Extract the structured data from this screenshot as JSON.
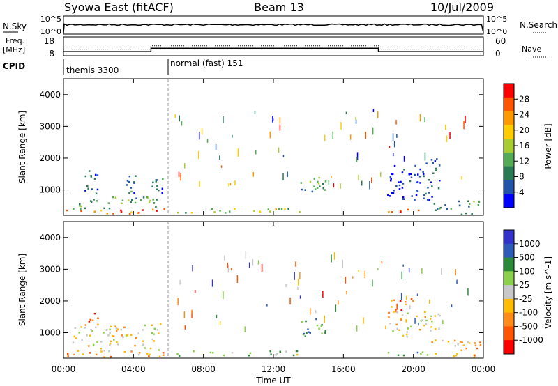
{
  "header": {
    "station": "Syowa East (fitACF)",
    "beam": "Beam 13",
    "date": "10/Jul/2009"
  },
  "summary_panels": {
    "nsky_label": "N.Sky",
    "nsearch_label": "N.Search",
    "nsky_ticks": [
      "10^5",
      "10^0"
    ],
    "nsearch_ticks": [
      "10^5",
      "10^0"
    ],
    "freq_label": "Freq.",
    "freq_unit": "[MHz]",
    "freq_ticks": [
      "18",
      "8"
    ],
    "nave_label": "Nave",
    "nave_ticks": [
      "60",
      "0"
    ],
    "cpid_label": "CPID",
    "cpid_segments": [
      {
        "start_h": 0,
        "end_h": 6,
        "label": "themis 3300"
      },
      {
        "start_h": 6,
        "end_h": 24,
        "label": "normal (fast) 151"
      }
    ],
    "freq_steps": [
      {
        "start_h": 0,
        "end_h": 5,
        "mhz": 10.2
      },
      {
        "start_h": 5,
        "end_h": 18,
        "mhz": 12.0
      },
      {
        "start_h": 18,
        "end_h": 24,
        "mhz": 10.2
      }
    ]
  },
  "colors": {
    "power_scale": [
      "#0000ff",
      "#2255aa",
      "#2a7a55",
      "#55aa55",
      "#aacc33",
      "#ffcc00",
      "#ff9900",
      "#ff5500",
      "#ff0000"
    ],
    "velocity_scale": [
      "#ff0000",
      "#ff5500",
      "#ff8c1a",
      "#ffbb00",
      "#c8c8c8",
      "#8ad04a",
      "#2a8a3a",
      "#2e5ab8",
      "#3333cc"
    ],
    "frame": "#000000"
  },
  "chart_data": [
    {
      "type": "heatmap",
      "ylabel": "Slant Range [km]",
      "xlabel": "Time UT",
      "xlim": [
        0,
        24
      ],
      "ylim": [
        200,
        4500
      ],
      "x_ticks": [
        "00:00",
        "04:00",
        "08:00",
        "12:00",
        "16:00",
        "20:00",
        "00:00"
      ],
      "y_ticks": [
        1000,
        2000,
        3000,
        4000
      ],
      "colorbar_label": "Power [dB]",
      "colorbar_ticks": [
        "4",
        "8",
        "12",
        "16",
        "20",
        "24",
        "28"
      ],
      "regions": [
        {
          "t0": 0.0,
          "t1": 5.8,
          "r0": 250,
          "r1": 420,
          "level": 0.85
        },
        {
          "t0": 0.5,
          "t1": 5.5,
          "r0": 420,
          "r1": 800,
          "level": 0.35
        },
        {
          "t0": 1.2,
          "t1": 2.2,
          "r0": 900,
          "r1": 1700,
          "level": 0.1
        },
        {
          "t0": 3.5,
          "t1": 5.7,
          "r0": 900,
          "r1": 1500,
          "level": 0.15
        },
        {
          "t0": 6.0,
          "t1": 13.5,
          "r0": 300,
          "r1": 450,
          "level": 0.5
        },
        {
          "t0": 13.5,
          "t1": 15.2,
          "r0": 900,
          "r1": 1500,
          "level": 0.3
        },
        {
          "t0": 18.5,
          "t1": 21.5,
          "r0": 700,
          "r1": 2000,
          "level": 0.05
        },
        {
          "t0": 18.0,
          "t1": 21.0,
          "r0": 300,
          "r1": 420,
          "level": 0.75
        },
        {
          "t0": 21.0,
          "t1": 23.8,
          "r0": 250,
          "r1": 700,
          "level": 0.3
        }
      ]
    },
    {
      "type": "heatmap",
      "ylabel": "Slant Range [km]",
      "xlabel": "Time UT",
      "xlim": [
        0,
        24
      ],
      "ylim": [
        200,
        4500
      ],
      "x_ticks": [
        "00:00",
        "04:00",
        "08:00",
        "12:00",
        "16:00",
        "20:00",
        "00:00"
      ],
      "y_ticks": [
        1000,
        2000,
        3000,
        4000
      ],
      "colorbar_label": "Velocity [m s^-1]",
      "colorbar_ticks": [
        "1000",
        "500",
        "100",
        "25",
        "-25",
        "-100",
        "-500",
        "-1000"
      ],
      "regions": [
        {
          "t0": 0.0,
          "t1": 5.8,
          "r0": 250,
          "r1": 420,
          "level": 0.25
        },
        {
          "t0": 0.5,
          "t1": 5.5,
          "r0": 420,
          "r1": 1300,
          "level": 0.45
        },
        {
          "t0": 1.3,
          "t1": 2.0,
          "r0": 1300,
          "r1": 1700,
          "level": 0.15
        },
        {
          "t0": 6.0,
          "t1": 13.5,
          "r0": 300,
          "r1": 450,
          "level": 0.6
        },
        {
          "t0": 13.5,
          "t1": 15.2,
          "r0": 900,
          "r1": 1500,
          "level": 0.8
        },
        {
          "t0": 18.5,
          "t1": 20.0,
          "r0": 1600,
          "r1": 2100,
          "level": 0.2
        },
        {
          "t0": 18.5,
          "t1": 21.5,
          "r0": 900,
          "r1": 1700,
          "level": 0.45
        },
        {
          "t0": 18.0,
          "t1": 21.5,
          "r0": 300,
          "r1": 420,
          "level": 0.65
        },
        {
          "t0": 21.0,
          "t1": 23.8,
          "r0": 250,
          "r1": 800,
          "level": 0.35
        }
      ]
    }
  ]
}
